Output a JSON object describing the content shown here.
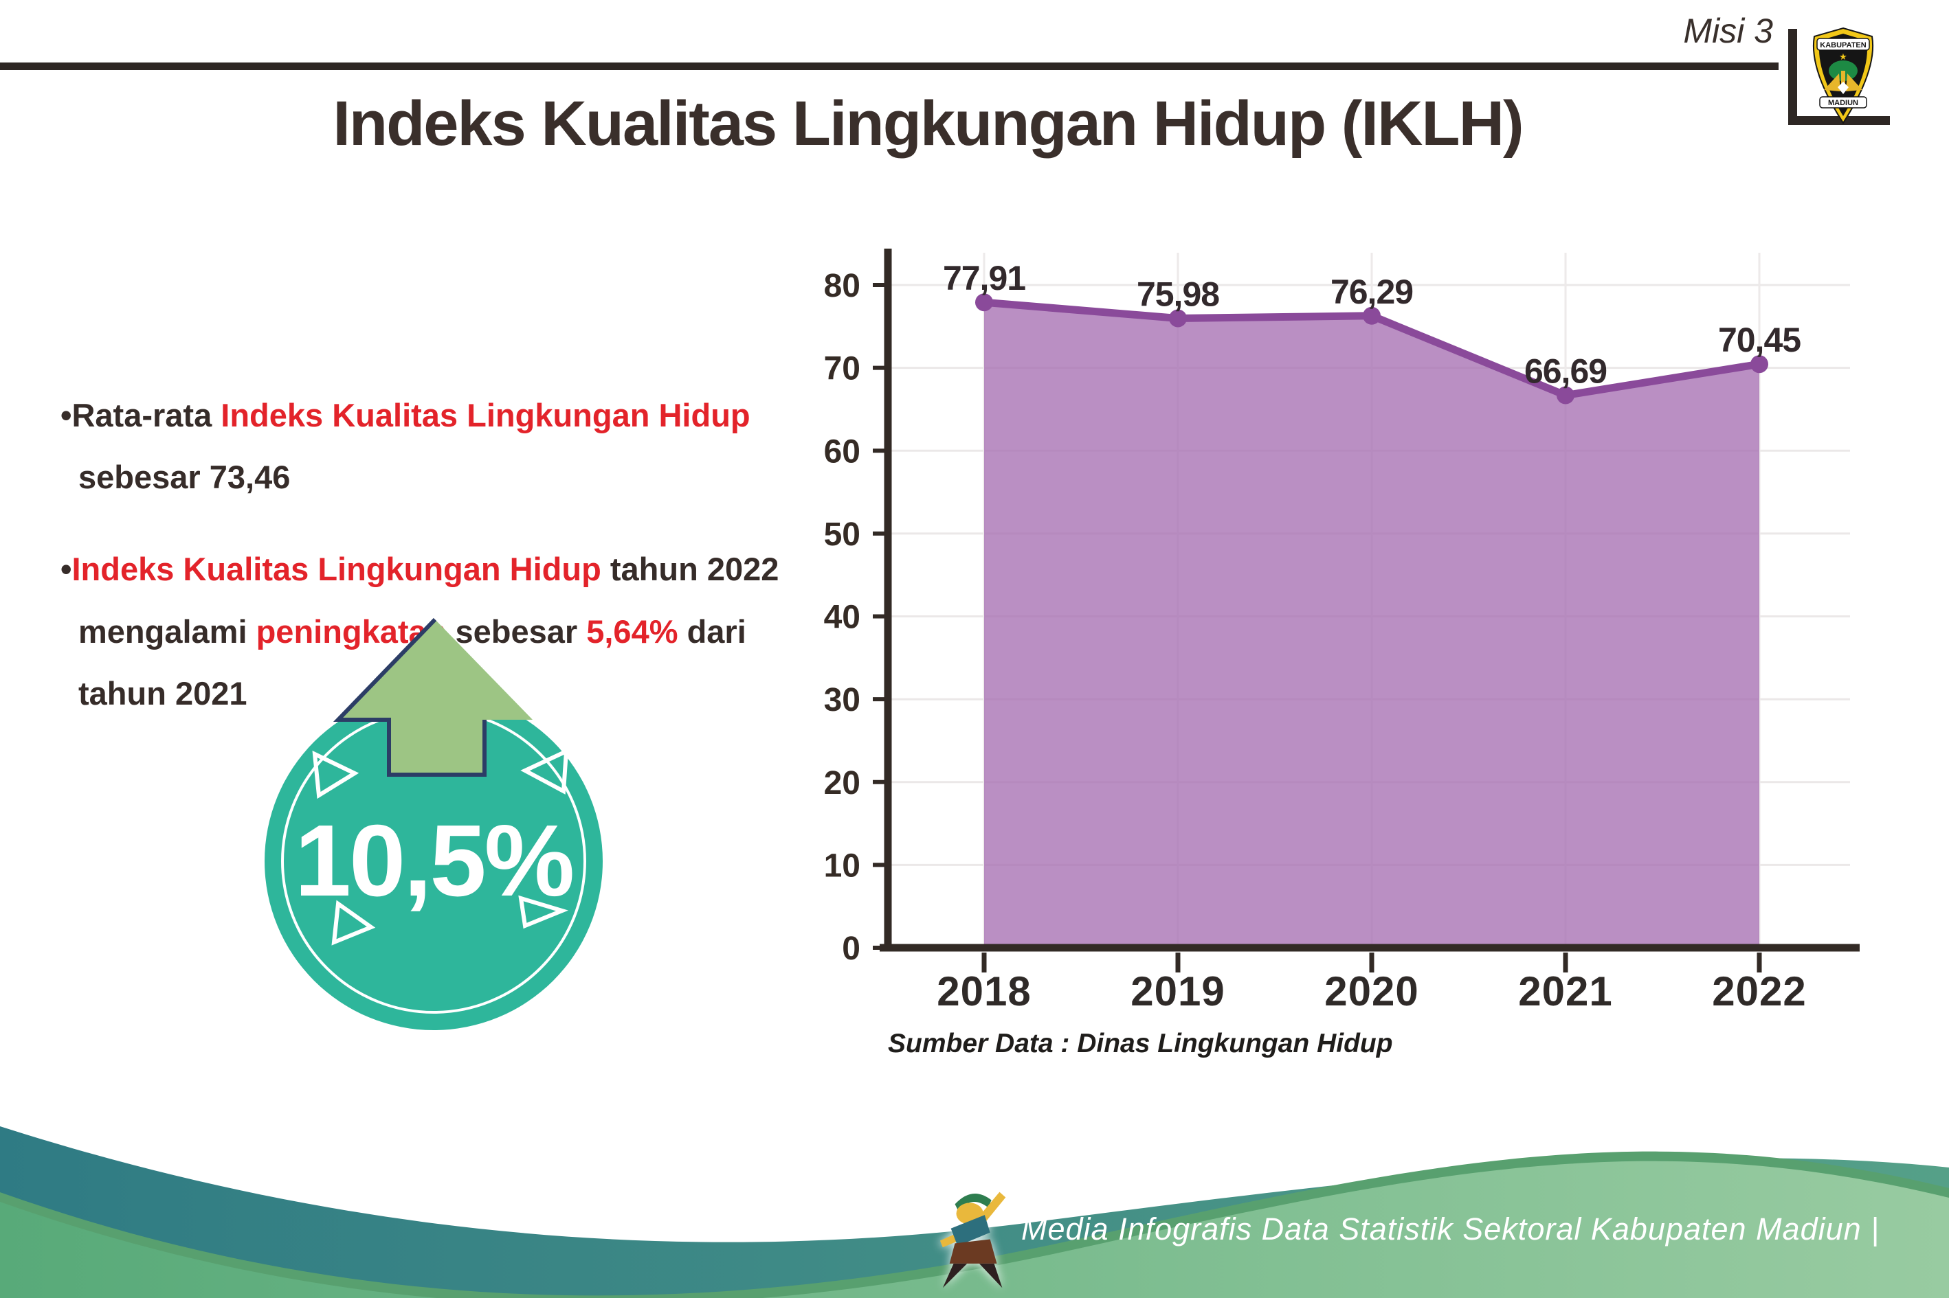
{
  "header": {
    "misi_label": "Misi 3",
    "title": "Indeks Kualitas Lingkungan Hidup (IKLH)",
    "logo_top_text": "KABUPATEN",
    "logo_bottom_text": "MADIUN"
  },
  "bullets": {
    "bullet_char": "•",
    "b1": {
      "l1_pre": "Rata-rata ",
      "l1_red": "Indeks Kualitas Lingkungan Hidup",
      "l2": "sebesar 73,46"
    },
    "b2": {
      "l1_red": "Indeks Kualitas Lingkungan Hidup",
      "l1_post": " tahun 2022",
      "l2_pre": "mengalami ",
      "l2_red": "peningkatan",
      "l2_mid": " sebesar ",
      "l2_red2": "5,64%",
      "l2_post": " dari",
      "l3": "tahun 2021"
    }
  },
  "badge": {
    "value": "10,5%",
    "circle_color": "#2eb69b",
    "arrow_color": "#9dc584",
    "arrow_outline": "#2c3d66"
  },
  "chart_data": {
    "type": "area",
    "title": "",
    "categories": [
      "2018",
      "2019",
      "2020",
      "2021",
      "2022"
    ],
    "values": [
      77.91,
      75.98,
      76.29,
      66.69,
      70.45
    ],
    "labels": [
      "77,91",
      "75,98",
      "76,29",
      "66,69",
      "70,45"
    ],
    "ylim": [
      0,
      80
    ],
    "yticks": [
      0,
      10,
      20,
      30,
      40,
      50,
      60,
      70,
      80
    ],
    "grid": true,
    "legend": "none",
    "line_color": "#8a4a9a",
    "fill_color": "#a76fb2",
    "source": "Sumber Data : Dinas Lingkungan Hidup"
  },
  "footer": {
    "credit": "Media Infografis Data Statistik Sektoral Kabupaten Madiun |",
    "wave_teal": "#35808a",
    "wave_green": "#63b183"
  }
}
